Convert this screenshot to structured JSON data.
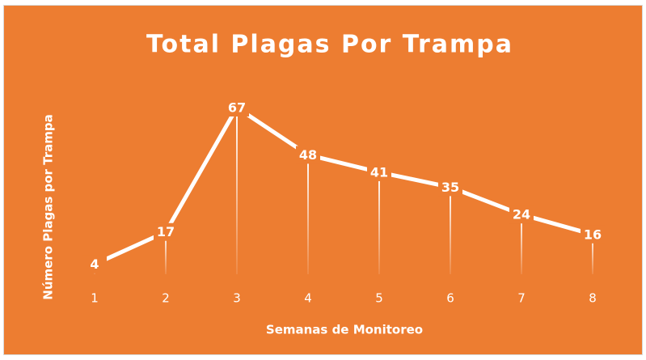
{
  "chart_data": {
    "type": "line",
    "title": "Total Plagas Por Trampa",
    "x_label": "Semanas de Monitoreo",
    "y_label": "Número Plagas por Trampa",
    "categories": [
      "1",
      "2",
      "3",
      "4",
      "5",
      "6",
      "7",
      "8"
    ],
    "series": [
      {
        "name": "Total",
        "color": "#ffffff",
        "values": [
          4,
          17,
          67,
          48,
          41,
          35,
          24,
          16
        ]
      }
    ],
    "drop_lines": true
  }
}
